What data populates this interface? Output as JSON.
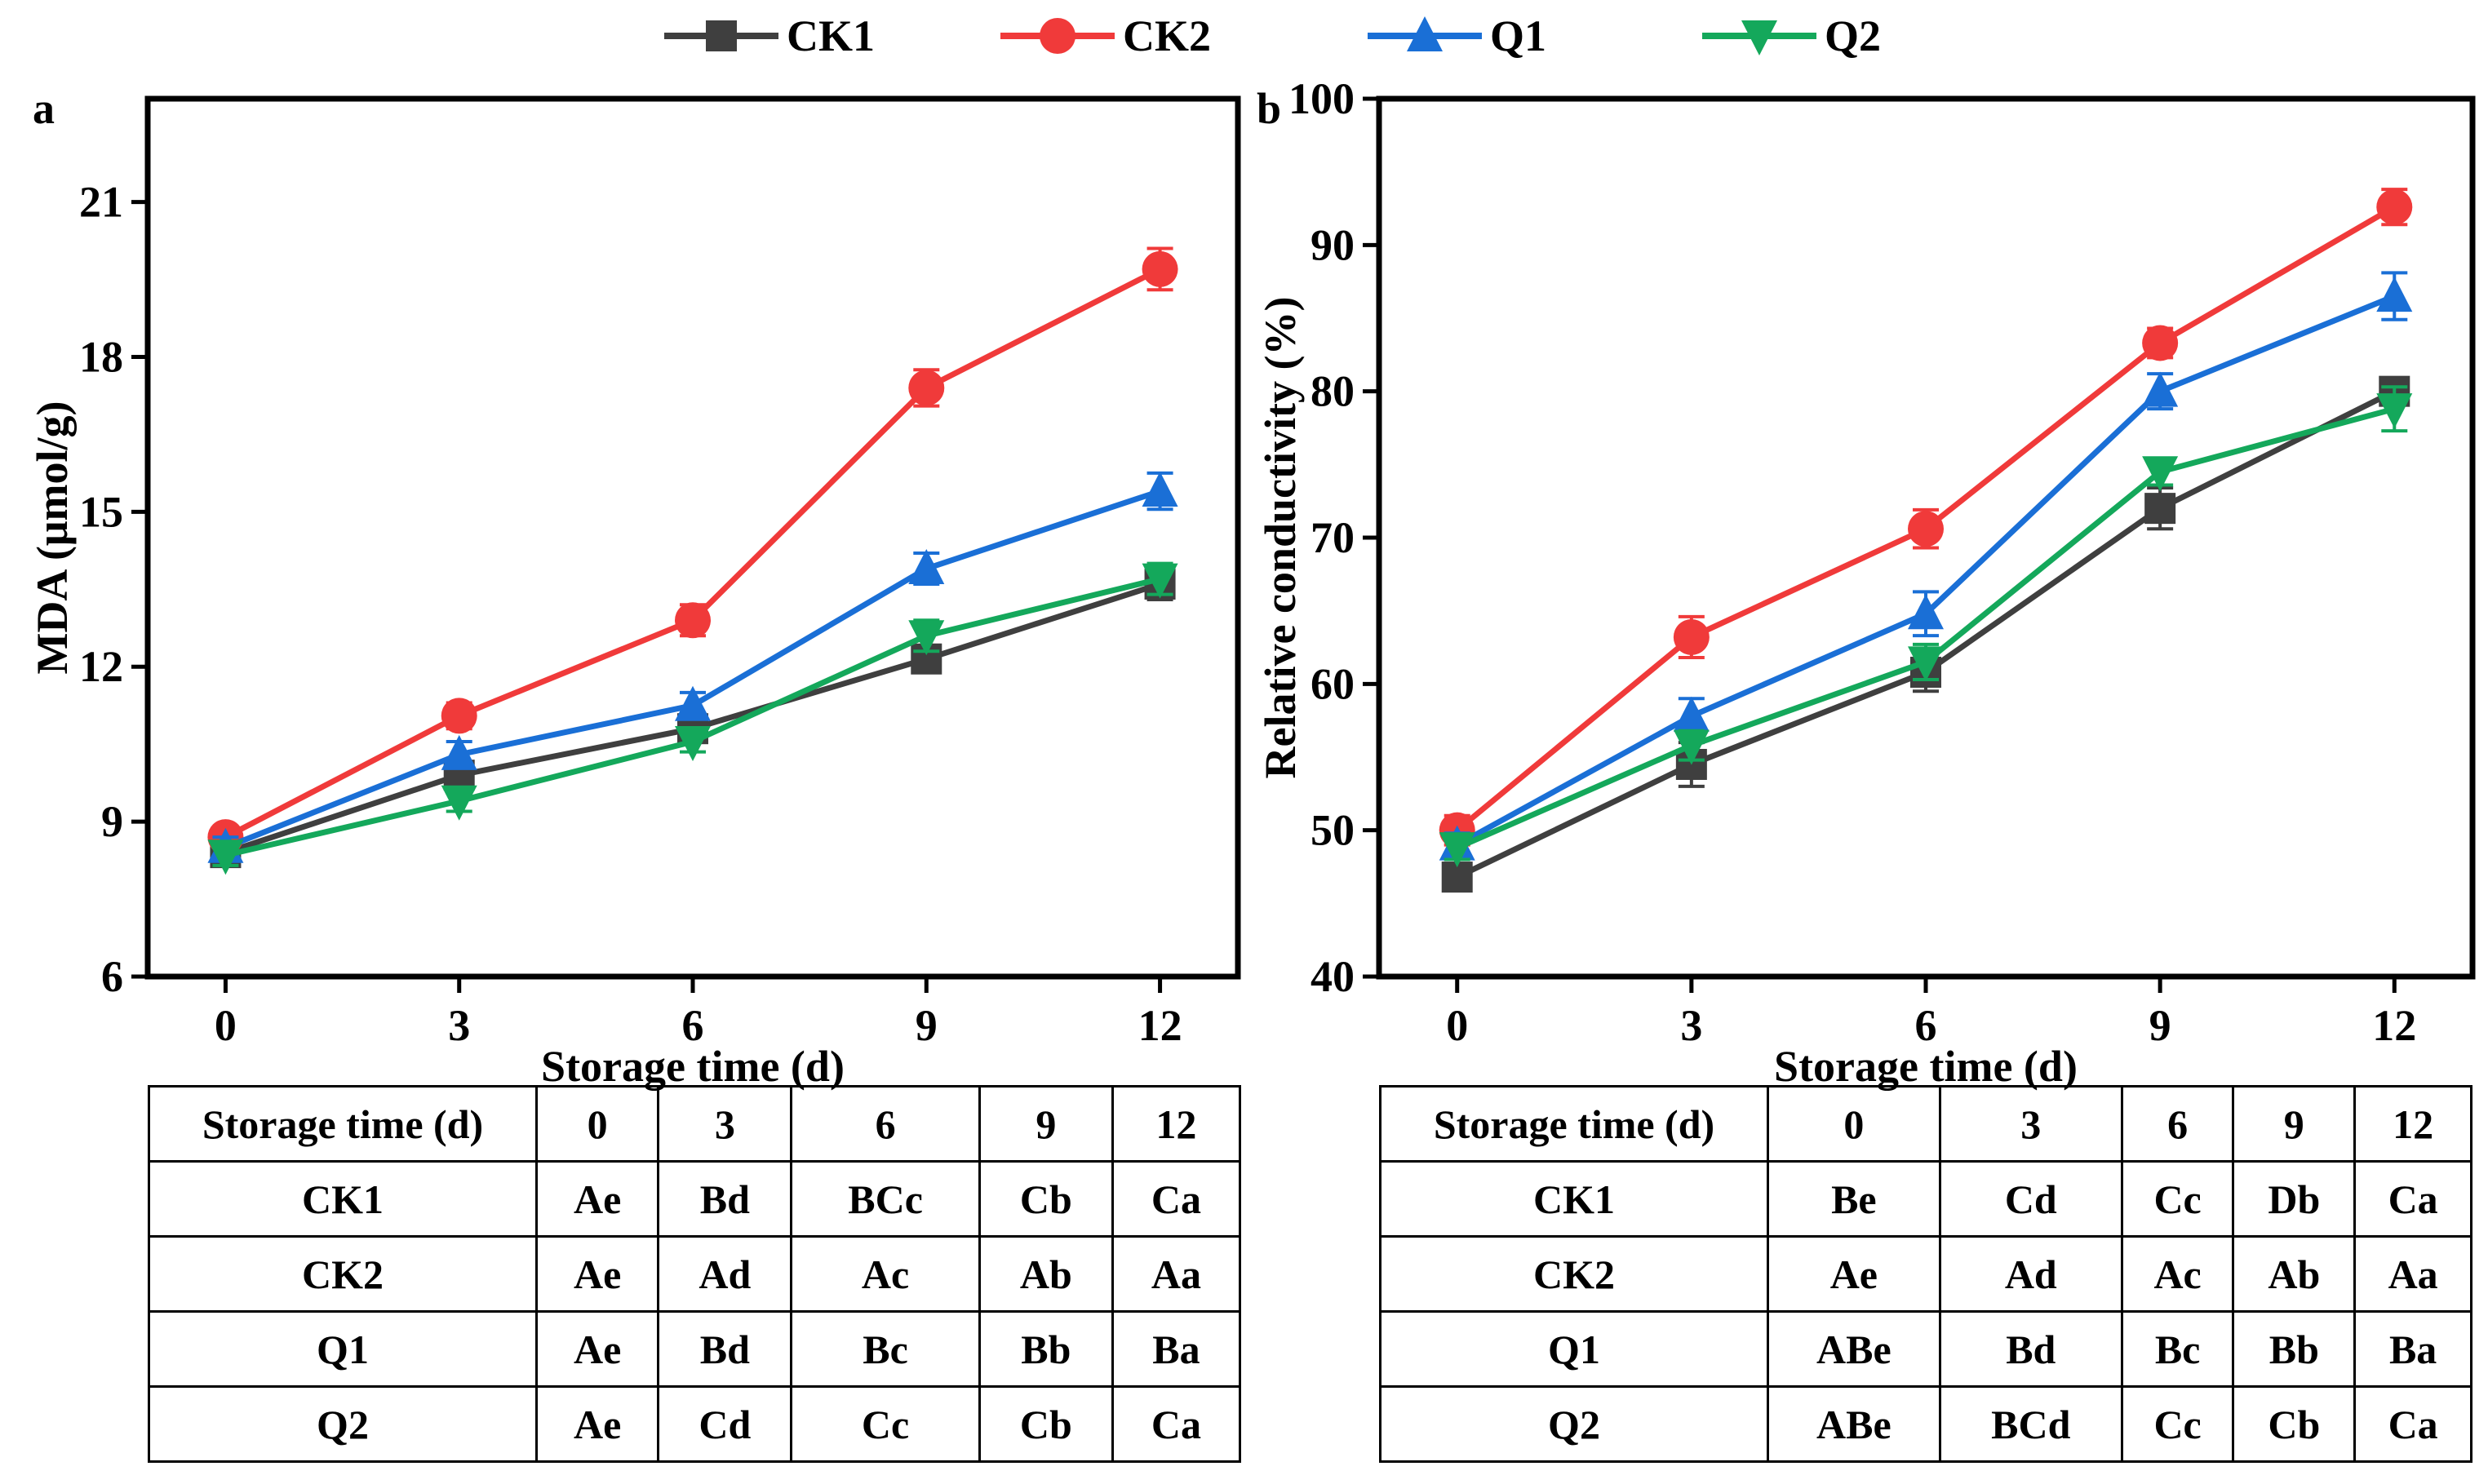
{
  "colors": {
    "CK1": "#3f3f3f",
    "CK2": "#f03a3a",
    "Q1": "#1a6fd6",
    "Q2": "#14a85b"
  },
  "legend": [
    {
      "name": "CK1",
      "marker": "square",
      "color": "#3f3f3f"
    },
    {
      "name": "CK2",
      "marker": "circle",
      "color": "#f03a3a"
    },
    {
      "name": "Q1",
      "marker": "triangle-up",
      "color": "#1a6fd6"
    },
    {
      "name": "Q2",
      "marker": "triangle-down",
      "color": "#14a85b"
    }
  ],
  "chart_data": [
    {
      "panel": "a",
      "type": "line",
      "xlabel": "Storage time (d)",
      "ylabel": "MDA (μmol/g)",
      "x": [
        0,
        3,
        6,
        9,
        12
      ],
      "xlim": [
        -1,
        13
      ],
      "ylim": [
        6,
        23
      ],
      "yticks": [
        6,
        9,
        12,
        15,
        18,
        21
      ],
      "series": [
        {
          "name": "CK1",
          "values": [
            8.4,
            9.9,
            10.8,
            12.15,
            13.6
          ],
          "errors": [
            0.2,
            0.2,
            0.2,
            0.25,
            0.3
          ]
        },
        {
          "name": "CK2",
          "values": [
            8.7,
            11.05,
            12.9,
            17.4,
            19.7
          ],
          "errors": [
            0.2,
            0.25,
            0.3,
            0.35,
            0.4
          ]
        },
        {
          "name": "Q1",
          "values": [
            8.5,
            10.3,
            11.25,
            13.9,
            15.4
          ],
          "errors": [
            0.2,
            0.25,
            0.25,
            0.3,
            0.35
          ]
        },
        {
          "name": "Q2",
          "values": [
            8.35,
            9.4,
            10.55,
            12.6,
            13.7
          ],
          "errors": [
            0.2,
            0.2,
            0.2,
            0.3,
            0.3
          ]
        }
      ]
    },
    {
      "panel": "b",
      "type": "line",
      "xlabel": "Storage time (d)",
      "ylabel": "Relative conductivity (%)",
      "x": [
        0,
        3,
        6,
        9,
        12
      ],
      "xlim": [
        -1,
        13
      ],
      "ylim": [
        40,
        100
      ],
      "yticks": [
        40,
        50,
        60,
        70,
        80,
        90,
        100
      ],
      "series": [
        {
          "name": "CK1",
          "values": [
            46.8,
            54.5,
            60.8,
            72.0,
            80.0
          ],
          "errors": [
            0.8,
            1.5,
            1.3,
            1.4,
            0.9
          ]
        },
        {
          "name": "CK2",
          "values": [
            50.0,
            63.2,
            70.6,
            83.3,
            92.6
          ],
          "errors": [
            1.0,
            1.4,
            1.3,
            1.0,
            1.2
          ]
        },
        {
          "name": "Q1",
          "values": [
            49.0,
            57.8,
            64.8,
            80.0,
            86.5
          ],
          "errors": [
            0.8,
            1.2,
            1.5,
            1.2,
            1.6
          ]
        },
        {
          "name": "Q2",
          "values": [
            48.8,
            55.8,
            61.5,
            74.5,
            78.8
          ],
          "errors": [
            0.8,
            1.0,
            1.2,
            0.9,
            1.5
          ]
        }
      ]
    }
  ],
  "tables": [
    {
      "header": [
        "Storage time (d)",
        "0",
        "3",
        "6",
        "9",
        "12"
      ],
      "rows": [
        [
          "CK1",
          "Ae",
          "Bd",
          "BCc",
          "Cb",
          "Ca"
        ],
        [
          "CK2",
          "Ae",
          "Ad",
          "Ac",
          "Ab",
          "Aa"
        ],
        [
          "Q1",
          "Ae",
          "Bd",
          "Bc",
          "Bb",
          "Ba"
        ],
        [
          "Q2",
          "Ae",
          "Cd",
          "Cc",
          "Cb",
          "Ca"
        ]
      ]
    },
    {
      "header": [
        "Storage time (d)",
        "0",
        "3",
        "6",
        "9",
        "12"
      ],
      "rows": [
        [
          "CK1",
          "Be",
          "Cd",
          "Cc",
          "Db",
          "Ca"
        ],
        [
          "CK2",
          "Ae",
          "Ad",
          "Ac",
          "Ab",
          "Aa"
        ],
        [
          "Q1",
          "ABe",
          "Bd",
          "Bc",
          "Bb",
          "Ba"
        ],
        [
          "Q2",
          "ABe",
          "BCd",
          "Cc",
          "Cb",
          "Ca"
        ]
      ]
    }
  ]
}
